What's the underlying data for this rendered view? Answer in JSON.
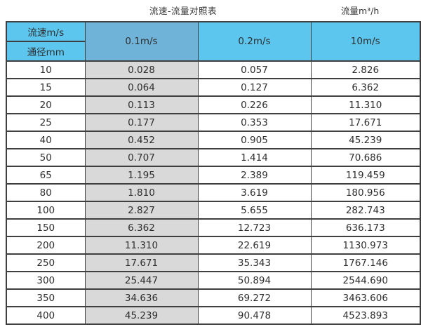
{
  "page": {
    "title": "流速-流量对照表",
    "unit_label": "流量m³/h"
  },
  "colors": {
    "header_light_blue": "#5cc6ee",
    "header_dark_blue": "#70b3d8",
    "highlight_column_gray": "#d9d9d9",
    "border": "#3f3f3f",
    "background": "#ffffff"
  },
  "chart_data": {
    "type": "table",
    "title": "流速-流量对照表",
    "unit_label": "流量m³/h",
    "row_header_top": "流速m/s",
    "row_header_bottom": "通径mm",
    "columns": [
      "0.1m/s",
      "0.2m/s",
      "10m/s"
    ],
    "rows": [
      {
        "diameter_mm": "10",
        "values": [
          "0.028",
          "0.057",
          "2.826"
        ]
      },
      {
        "diameter_mm": "15",
        "values": [
          "0.064",
          "0.127",
          "6.362"
        ]
      },
      {
        "diameter_mm": "20",
        "values": [
          "0.113",
          "0.226",
          "11.310"
        ]
      },
      {
        "diameter_mm": "25",
        "values": [
          "0.177",
          "0.353",
          "17.671"
        ]
      },
      {
        "diameter_mm": "40",
        "values": [
          "0.452",
          "0.905",
          "45.239"
        ]
      },
      {
        "diameter_mm": "50",
        "values": [
          "0.707",
          "1.414",
          "70.686"
        ]
      },
      {
        "diameter_mm": "65",
        "values": [
          "1.195",
          "2.389",
          "119.459"
        ]
      },
      {
        "diameter_mm": "80",
        "values": [
          "1.810",
          "3.619",
          "180.956"
        ]
      },
      {
        "diameter_mm": "100",
        "values": [
          "2.827",
          "5.655",
          "282.743"
        ]
      },
      {
        "diameter_mm": "150",
        "values": [
          "6.362",
          "12.723",
          "636.173"
        ]
      },
      {
        "diameter_mm": "200",
        "values": [
          "11.310",
          "22.619",
          "1130.973"
        ]
      },
      {
        "diameter_mm": "250",
        "values": [
          "17.671",
          "35.343",
          "1767.146"
        ]
      },
      {
        "diameter_mm": "300",
        "values": [
          "25.447",
          "50.894",
          "2544.690"
        ]
      },
      {
        "diameter_mm": "350",
        "values": [
          "34.636",
          "69.272",
          "3463.606"
        ]
      },
      {
        "diameter_mm": "400",
        "values": [
          "45.239",
          "90.478",
          "4523.893"
        ]
      }
    ]
  }
}
